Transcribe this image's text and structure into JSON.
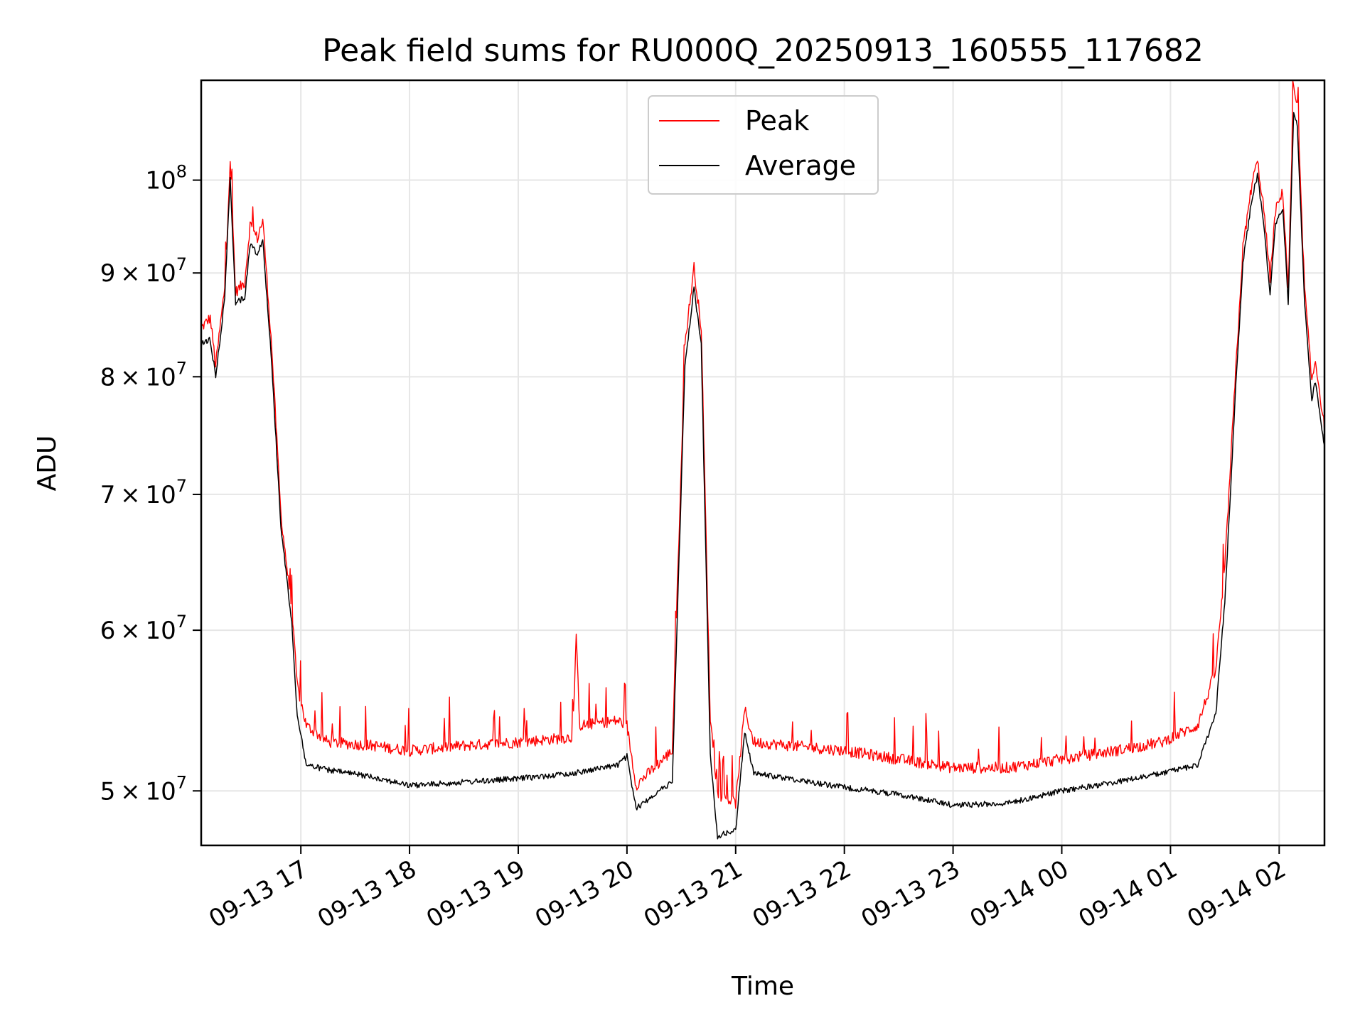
{
  "chart_data": {
    "type": "line",
    "title": "Peak field sums for RU000Q_20250913_160555_117682",
    "xlabel": "Time",
    "ylabel": "ADU",
    "y_scale": "log",
    "xlim": [
      "2025-09-13 16:05",
      "2025-09-14 02:25"
    ],
    "ylim": [
      47000000,
      112000000
    ],
    "x_ticks": [
      "09-13 17",
      "09-13 18",
      "09-13 19",
      "09-13 20",
      "09-13 21",
      "09-13 22",
      "09-13 23",
      "09-14 00",
      "09-14 01",
      "09-14 02"
    ],
    "y_ticks": [
      {
        "value": 50000000,
        "mant": "5",
        "exp": "7"
      },
      {
        "value": 60000000,
        "mant": "6",
        "exp": "7"
      },
      {
        "value": 70000000,
        "mant": "7",
        "exp": "7"
      },
      {
        "value": 80000000,
        "mant": "8",
        "exp": "7"
      },
      {
        "value": 90000000,
        "mant": "9",
        "exp": "7"
      },
      {
        "value": 100000000,
        "mant": "",
        "exp": "8"
      }
    ],
    "grid": true,
    "legend_position": "top-center",
    "series": [
      {
        "name": "Peak",
        "color": "#ff0000",
        "points": [
          [
            "2025-09-13 16:05",
            84000000
          ],
          [
            "2025-09-13 16:10",
            85000000
          ],
          [
            "2025-09-13 16:13",
            80500000
          ],
          [
            "2025-09-13 16:18",
            88000000
          ],
          [
            "2025-09-13 16:21",
            101500000
          ],
          [
            "2025-09-13 16:24",
            87500000
          ],
          [
            "2025-09-13 16:29",
            88500000
          ],
          [
            "2025-09-13 16:32",
            94500000
          ],
          [
            "2025-09-13 16:36",
            93000000
          ],
          [
            "2025-09-13 16:39",
            95000000
          ],
          [
            "2025-09-13 16:44",
            82000000
          ],
          [
            "2025-09-13 16:49",
            68000000
          ],
          [
            "2025-09-13 16:55",
            61000000
          ],
          [
            "2025-09-13 16:58",
            56000000
          ],
          [
            "2025-09-13 17:03",
            53500000
          ],
          [
            "2025-09-13 17:15",
            52500000
          ],
          [
            "2025-09-13 17:40",
            52300000
          ],
          [
            "2025-09-13 18:00",
            52000000
          ],
          [
            "2025-09-13 18:30",
            52300000
          ],
          [
            "2025-09-13 19:00",
            52500000
          ],
          [
            "2025-09-13 19:30",
            52800000
          ],
          [
            "2025-09-13 19:32",
            59000000
          ],
          [
            "2025-09-13 19:34",
            53500000
          ],
          [
            "2025-09-13 19:55",
            53800000
          ],
          [
            "2025-09-13 20:00",
            53500000
          ],
          [
            "2025-09-13 20:05",
            50000000
          ],
          [
            "2025-09-13 20:15",
            51000000
          ],
          [
            "2025-09-13 20:25",
            52000000
          ],
          [
            "2025-09-13 20:32",
            82500000
          ],
          [
            "2025-09-13 20:37",
            90000000
          ],
          [
            "2025-09-13 20:41",
            84000000
          ],
          [
            "2025-09-13 20:46",
            54000000
          ],
          [
            "2025-09-13 20:50",
            49500000
          ],
          [
            "2025-09-13 21:00",
            49000000
          ],
          [
            "2025-09-13 21:05",
            54500000
          ],
          [
            "2025-09-13 21:10",
            52500000
          ],
          [
            "2025-09-13 21:30",
            52300000
          ],
          [
            "2025-09-13 22:00",
            52000000
          ],
          [
            "2025-09-13 22:30",
            51500000
          ],
          [
            "2025-09-13 23:00",
            51000000
          ],
          [
            "2025-09-13 23:30",
            51000000
          ],
          [
            "2025-09-14 00:00",
            51500000
          ],
          [
            "2025-09-14 00:30",
            52000000
          ],
          [
            "2025-09-14 00:55",
            52500000
          ],
          [
            "2025-09-14 01:15",
            53500000
          ],
          [
            "2025-09-14 01:25",
            57000000
          ],
          [
            "2025-09-14 01:30",
            64000000
          ],
          [
            "2025-09-14 01:36",
            80000000
          ],
          [
            "2025-09-14 01:40",
            92000000
          ],
          [
            "2025-09-14 01:45",
            99000000
          ],
          [
            "2025-09-14 01:48",
            101500000
          ],
          [
            "2025-09-14 01:51",
            97000000
          ],
          [
            "2025-09-14 01:55",
            89000000
          ],
          [
            "2025-09-14 01:58",
            96000000
          ],
          [
            "2025-09-14 02:02",
            98000000
          ],
          [
            "2025-09-14 02:05",
            88000000
          ],
          [
            "2025-09-14 02:08",
            110000000
          ],
          [
            "2025-09-14 02:10",
            108000000
          ],
          [
            "2025-09-14 02:14",
            88000000
          ],
          [
            "2025-09-14 02:18",
            79000000
          ],
          [
            "2025-09-14 02:20",
            81000000
          ],
          [
            "2025-09-14 02:25",
            75000000
          ]
        ]
      },
      {
        "name": "Average",
        "color": "#000000",
        "points": [
          [
            "2025-09-13 16:05",
            83000000
          ],
          [
            "2025-09-13 16:10",
            83500000
          ],
          [
            "2025-09-13 16:13",
            80000000
          ],
          [
            "2025-09-13 16:18",
            87500000
          ],
          [
            "2025-09-13 16:21",
            100500000
          ],
          [
            "2025-09-13 16:24",
            87000000
          ],
          [
            "2025-09-13 16:29",
            87500000
          ],
          [
            "2025-09-13 16:32",
            93000000
          ],
          [
            "2025-09-13 16:36",
            92000000
          ],
          [
            "2025-09-13 16:39",
            93500000
          ],
          [
            "2025-09-13 16:44",
            81000000
          ],
          [
            "2025-09-13 16:49",
            67500000
          ],
          [
            "2025-09-13 16:55",
            60500000
          ],
          [
            "2025-09-13 16:58",
            54500000
          ],
          [
            "2025-09-13 17:03",
            51500000
          ],
          [
            "2025-09-13 17:15",
            51200000
          ],
          [
            "2025-09-13 17:40",
            50800000
          ],
          [
            "2025-09-13 18:00",
            50300000
          ],
          [
            "2025-09-13 18:30",
            50500000
          ],
          [
            "2025-09-13 19:00",
            50700000
          ],
          [
            "2025-09-13 19:30",
            51000000
          ],
          [
            "2025-09-13 19:55",
            51500000
          ],
          [
            "2025-09-13 20:00",
            52000000
          ],
          [
            "2025-09-13 20:05",
            49000000
          ],
          [
            "2025-09-13 20:15",
            49800000
          ],
          [
            "2025-09-13 20:25",
            50500000
          ],
          [
            "2025-09-13 20:32",
            81000000
          ],
          [
            "2025-09-13 20:37",
            88500000
          ],
          [
            "2025-09-13 20:41",
            83000000
          ],
          [
            "2025-09-13 20:46",
            52000000
          ],
          [
            "2025-09-13 20:50",
            47500000
          ],
          [
            "2025-09-13 21:00",
            47800000
          ],
          [
            "2025-09-13 21:05",
            53500000
          ],
          [
            "2025-09-13 21:10",
            51000000
          ],
          [
            "2025-09-13 21:30",
            50700000
          ],
          [
            "2025-09-13 22:00",
            50200000
          ],
          [
            "2025-09-13 22:30",
            49800000
          ],
          [
            "2025-09-13 23:00",
            49200000
          ],
          [
            "2025-09-13 23:30",
            49300000
          ],
          [
            "2025-09-14 00:00",
            50000000
          ],
          [
            "2025-09-14 00:30",
            50500000
          ],
          [
            "2025-09-14 00:55",
            51000000
          ],
          [
            "2025-09-14 01:15",
            51500000
          ],
          [
            "2025-09-14 01:25",
            54500000
          ],
          [
            "2025-09-14 01:30",
            62000000
          ],
          [
            "2025-09-14 01:36",
            79000000
          ],
          [
            "2025-09-14 01:40",
            91000000
          ],
          [
            "2025-09-14 01:45",
            98000000
          ],
          [
            "2025-09-14 01:48",
            100500000
          ],
          [
            "2025-09-14 01:51",
            96000000
          ],
          [
            "2025-09-14 01:55",
            88000000
          ],
          [
            "2025-09-14 01:58",
            95000000
          ],
          [
            "2025-09-14 02:02",
            97000000
          ],
          [
            "2025-09-14 02:05",
            87000000
          ],
          [
            "2025-09-14 02:08",
            108000000
          ],
          [
            "2025-09-14 02:10",
            106500000
          ],
          [
            "2025-09-14 02:14",
            87000000
          ],
          [
            "2025-09-14 02:18",
            78000000
          ],
          [
            "2025-09-14 02:20",
            79500000
          ],
          [
            "2025-09-14 02:25",
            74000000
          ]
        ]
      }
    ]
  }
}
